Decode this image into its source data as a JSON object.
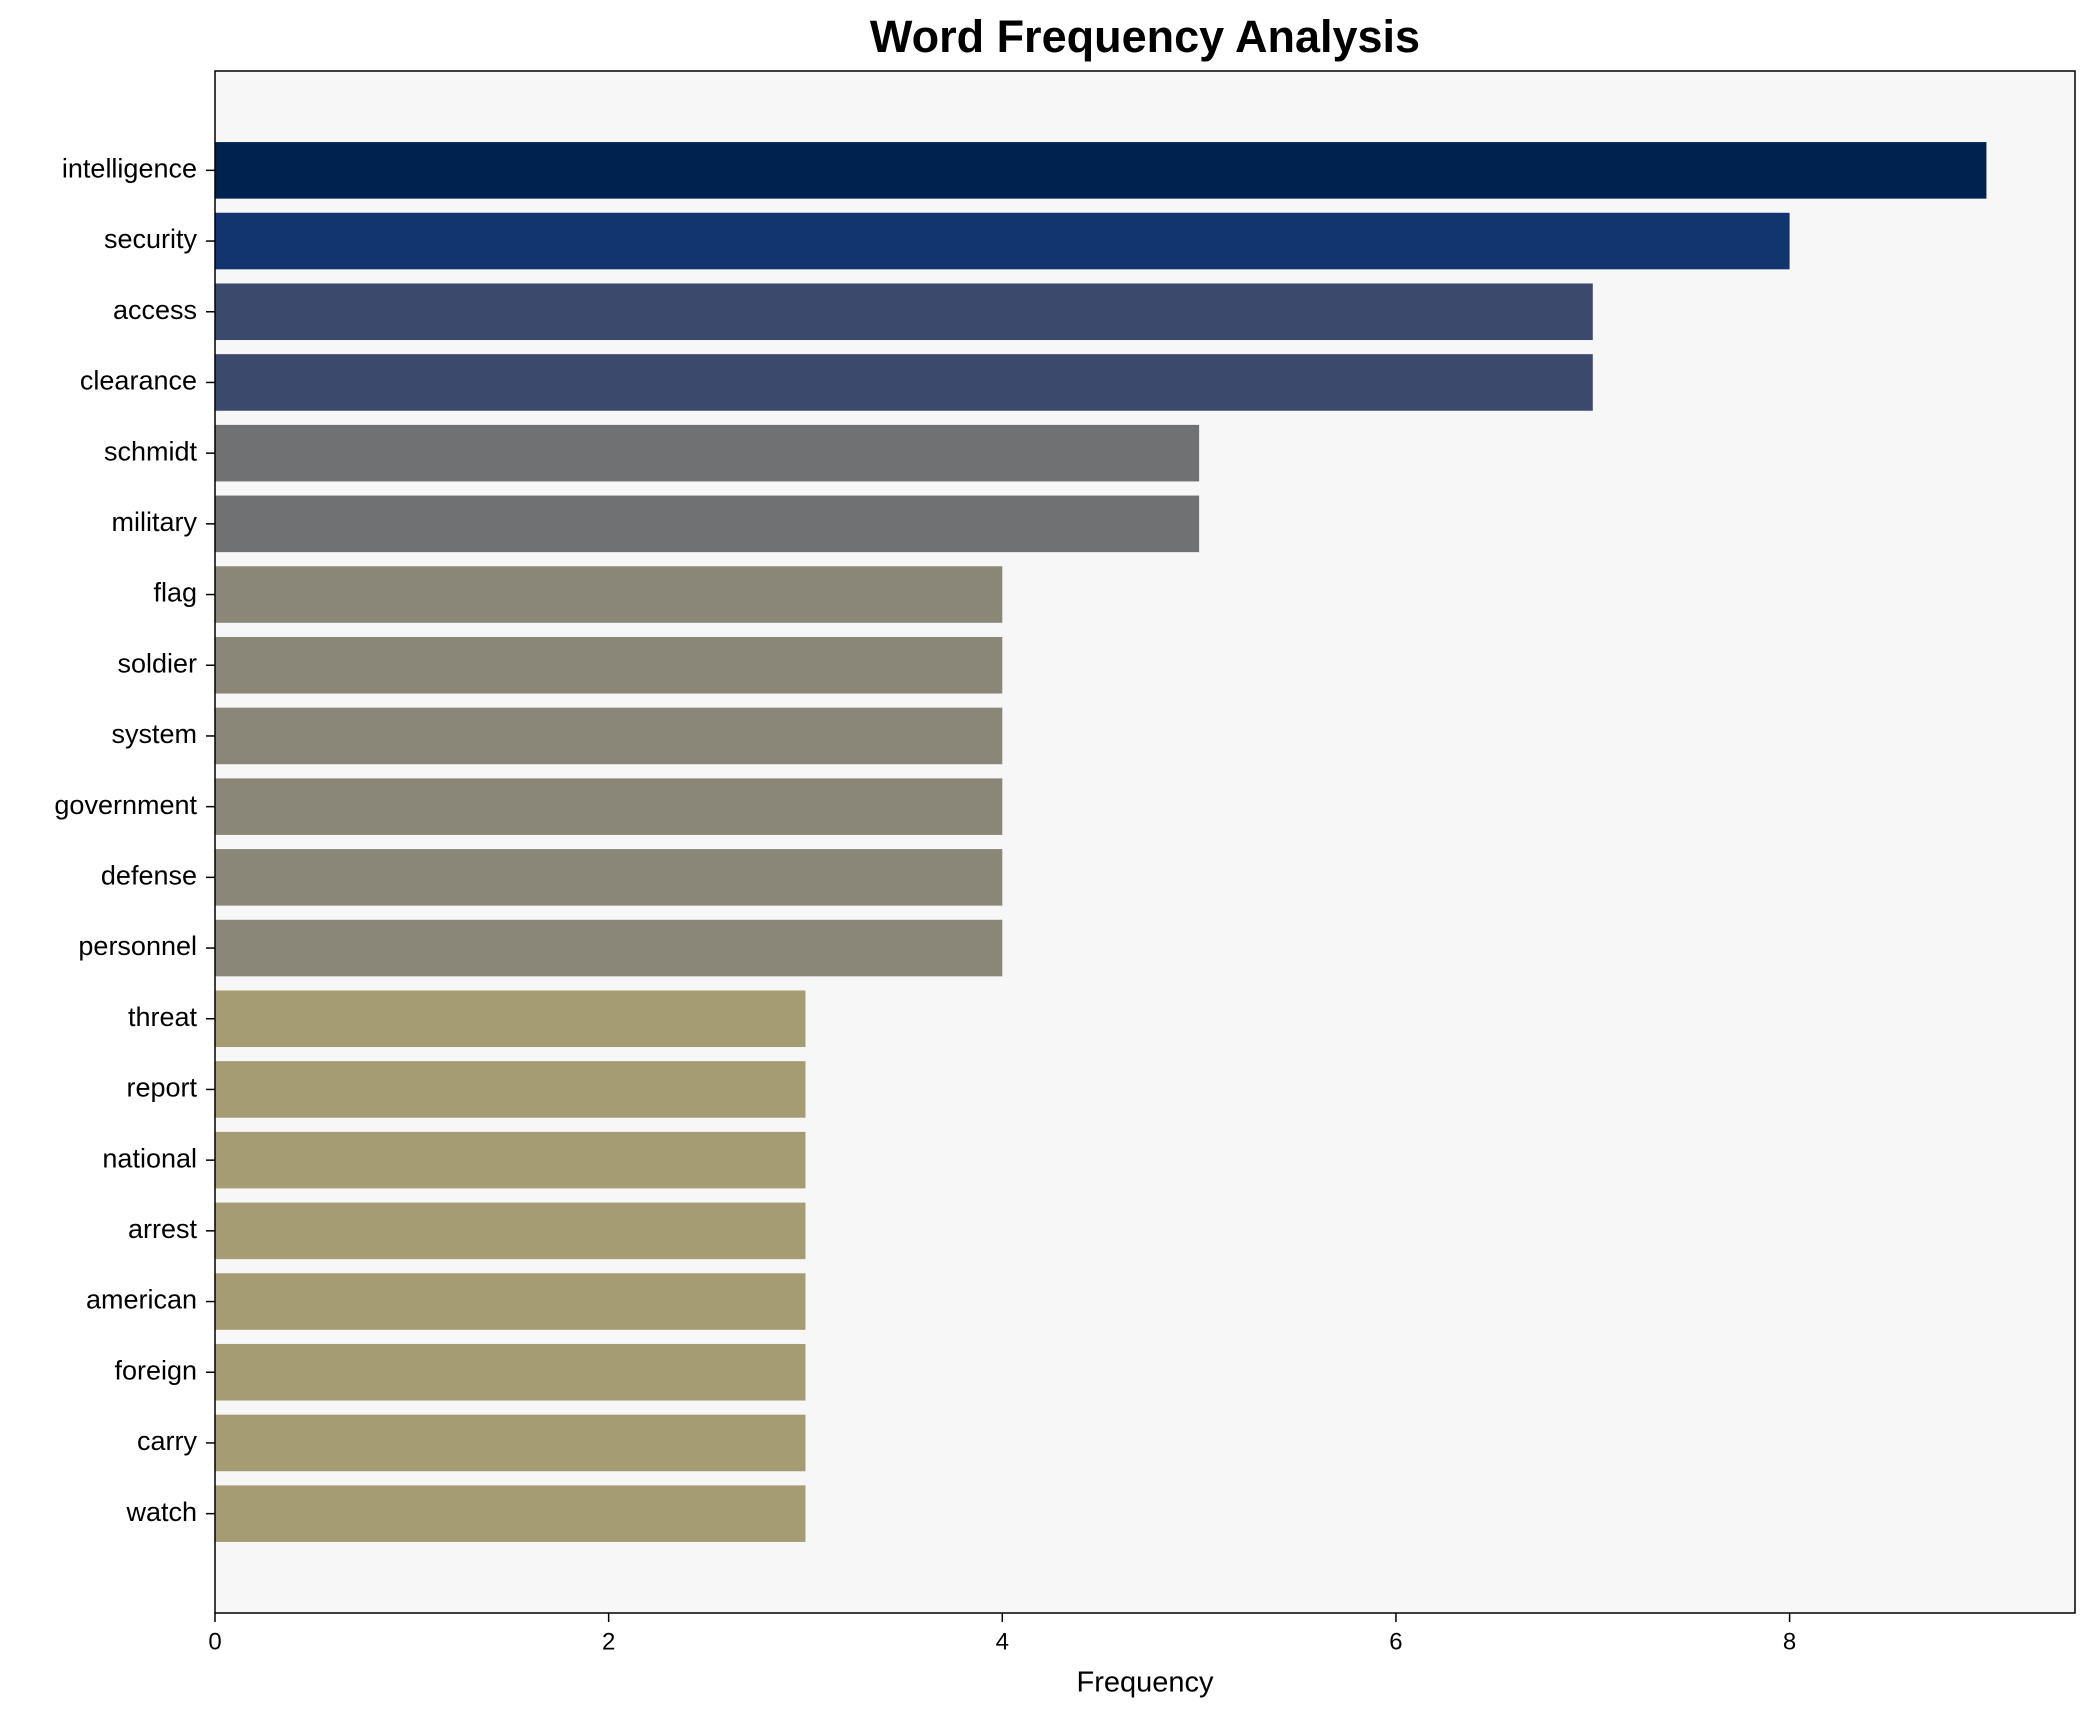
{
  "chart_data": {
    "type": "bar",
    "orientation": "horizontal",
    "title": "Word Frequency Analysis",
    "x_label": "Frequency",
    "categories": [
      "intelligence",
      "security",
      "access",
      "clearance",
      "schmidt",
      "military",
      "flag",
      "soldier",
      "system",
      "government",
      "defense",
      "personnel",
      "threat",
      "report",
      "national",
      "arrest",
      "american",
      "foreign",
      "carry",
      "watch"
    ],
    "values": [
      9,
      8,
      7,
      7,
      5,
      5,
      4,
      4,
      4,
      4,
      4,
      4,
      3,
      3,
      3,
      3,
      3,
      3,
      3,
      3
    ],
    "colors": [
      "#00224e",
      "#123570",
      "#3b496c",
      "#3b496c",
      "#707173",
      "#707173",
      "#8a8779",
      "#8a8779",
      "#8a8779",
      "#8a8779",
      "#8a8779",
      "#8a8779",
      "#a59c74",
      "#a59c74",
      "#a59c74",
      "#a59c74",
      "#a59c74",
      "#a59c74",
      "#a59c74",
      "#a59c74"
    ],
    "xlim": [
      0,
      9.45
    ],
    "xticks": [
      0,
      2,
      4,
      6,
      8
    ],
    "background": "#f7f7f7"
  }
}
